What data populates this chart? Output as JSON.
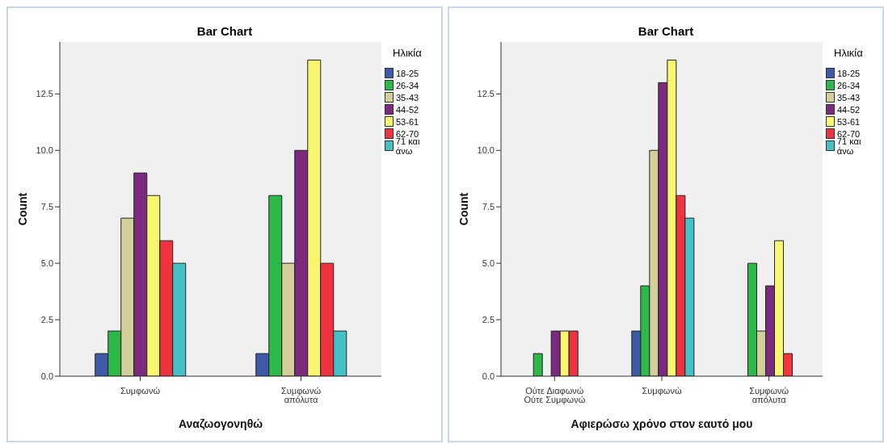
{
  "chart_data": [
    {
      "type": "bar",
      "title": "Bar Chart",
      "xlabel": "Αναζωογονηθώ",
      "ylabel": "Count",
      "legend_title": "Ηλικία",
      "legend": "right",
      "grid": false,
      "categories": [
        "Συμφωνώ",
        "Συμφωνώ απόλυτα"
      ],
      "ylim": [
        0,
        14.8
      ],
      "yticks": [
        {
          "value": 0,
          "label": "0.0"
        },
        {
          "value": 2.5,
          "label": "2.5"
        },
        {
          "value": 5,
          "label": "5.0"
        },
        {
          "value": 7.5,
          "label": "7.5"
        },
        {
          "value": 10,
          "label": "10.0"
        },
        {
          "value": 12.5,
          "label": "12.5"
        }
      ],
      "series": [
        {
          "name": "18-25",
          "color": "#3d5aa8",
          "values": [
            1,
            1
          ]
        },
        {
          "name": "26-34",
          "color": "#2db84a",
          "values": [
            2,
            8
          ]
        },
        {
          "name": "35-43",
          "color": "#d3cf9a",
          "values": [
            7,
            5
          ]
        },
        {
          "name": "44-52",
          "color": "#7b2a7f",
          "values": [
            9,
            10
          ]
        },
        {
          "name": "53-61",
          "color": "#f8f66e",
          "values": [
            8,
            14
          ]
        },
        {
          "name": "62-70",
          "color": "#ef3340",
          "values": [
            6,
            5
          ]
        },
        {
          "name": "71 και άνω",
          "color": "#45c0c5",
          "values": [
            5,
            2
          ]
        }
      ]
    },
    {
      "type": "bar",
      "title": "Bar Chart",
      "xlabel": "Αφιερώσω χρόνο στον εαυτό μου",
      "ylabel": "Count",
      "legend_title": "Ηλικία",
      "legend": "right",
      "grid": false,
      "categories": [
        "Ούτε Διαφωνώ Ούτε Συμφωνώ",
        "Συμφωνώ",
        "Συμφωνώ απόλυτα"
      ],
      "ylim": [
        0,
        14.8
      ],
      "yticks": [
        {
          "value": 0,
          "label": "0.0"
        },
        {
          "value": 2.5,
          "label": "2.5"
        },
        {
          "value": 5,
          "label": "5.0"
        },
        {
          "value": 7.5,
          "label": "7.5"
        },
        {
          "value": 10,
          "label": "10.0"
        },
        {
          "value": 12.5,
          "label": "12.5"
        }
      ],
      "series": [
        {
          "name": "18-25",
          "color": "#3d5aa8",
          "values": [
            null,
            2,
            null
          ]
        },
        {
          "name": "26-34",
          "color": "#2db84a",
          "values": [
            1,
            4,
            5
          ]
        },
        {
          "name": "35-43",
          "color": "#d3cf9a",
          "values": [
            null,
            10,
            2
          ]
        },
        {
          "name": "44-52",
          "color": "#7b2a7f",
          "values": [
            2,
            13,
            4
          ]
        },
        {
          "name": "53-61",
          "color": "#f8f66e",
          "values": [
            2,
            14,
            6
          ]
        },
        {
          "name": "62-70",
          "color": "#ef3340",
          "values": [
            2,
            8,
            1
          ]
        },
        {
          "name": "71 και άνω",
          "color": "#45c0c5",
          "values": [
            null,
            7,
            null
          ]
        }
      ]
    }
  ]
}
